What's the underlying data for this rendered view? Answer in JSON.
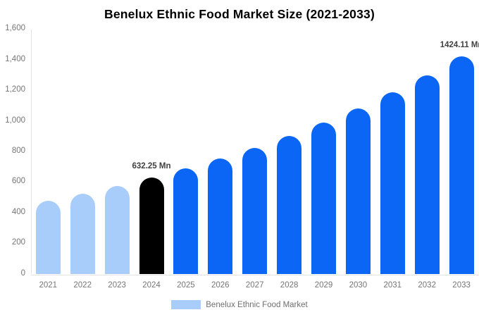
{
  "title": "Benelux Ethnic Food Market Size (2021-2033)",
  "legend": {
    "label": "Benelux Ethnic Food Market",
    "swatch_color": "#a8cdfa"
  },
  "colors": {
    "historical_bar": "#a8cdfa",
    "base_year_bar": "#000000",
    "forecast_bar": "#0b66f5",
    "axis_line": "#e3e3e3",
    "axis_text": "#757575",
    "data_label_text": "#404040",
    "title_text": "#000000"
  },
  "chart_data": {
    "type": "bar",
    "title": "Benelux Ethnic Food Market Size (2021-2033)",
    "xlabel": "",
    "ylabel": "",
    "unit": "Mn",
    "categories": [
      "2021",
      "2022",
      "2023",
      "2024",
      "2025",
      "2026",
      "2027",
      "2028",
      "2029",
      "2030",
      "2031",
      "2032",
      "2033"
    ],
    "values": [
      482,
      528,
      578,
      632.25,
      692,
      757,
      829,
      907,
      993,
      1086,
      1189,
      1301,
      1424.11
    ],
    "point_colors": [
      "#a8cdfa",
      "#a8cdfa",
      "#a8cdfa",
      "#000000",
      "#0b66f5",
      "#0b66f5",
      "#0b66f5",
      "#0b66f5",
      "#0b66f5",
      "#0b66f5",
      "#0b66f5",
      "#0b66f5",
      "#0b66f5"
    ],
    "annotations": [
      {
        "index": 3,
        "text": "632.25 Mn"
      },
      {
        "index": 12,
        "text": "1424.11 Mn"
      }
    ],
    "ylim": [
      0,
      1600
    ],
    "yticks": {
      "values": [
        0,
        200,
        400,
        600,
        800,
        1000,
        1200,
        1400,
        1600
      ],
      "labels": [
        "0",
        "200",
        "400",
        "600",
        "800",
        "1,000",
        "1,200",
        "1,400",
        "1,600"
      ]
    },
    "grid": false,
    "legend_position": "bottom",
    "series_name": "Benelux Ethnic Food Market"
  }
}
